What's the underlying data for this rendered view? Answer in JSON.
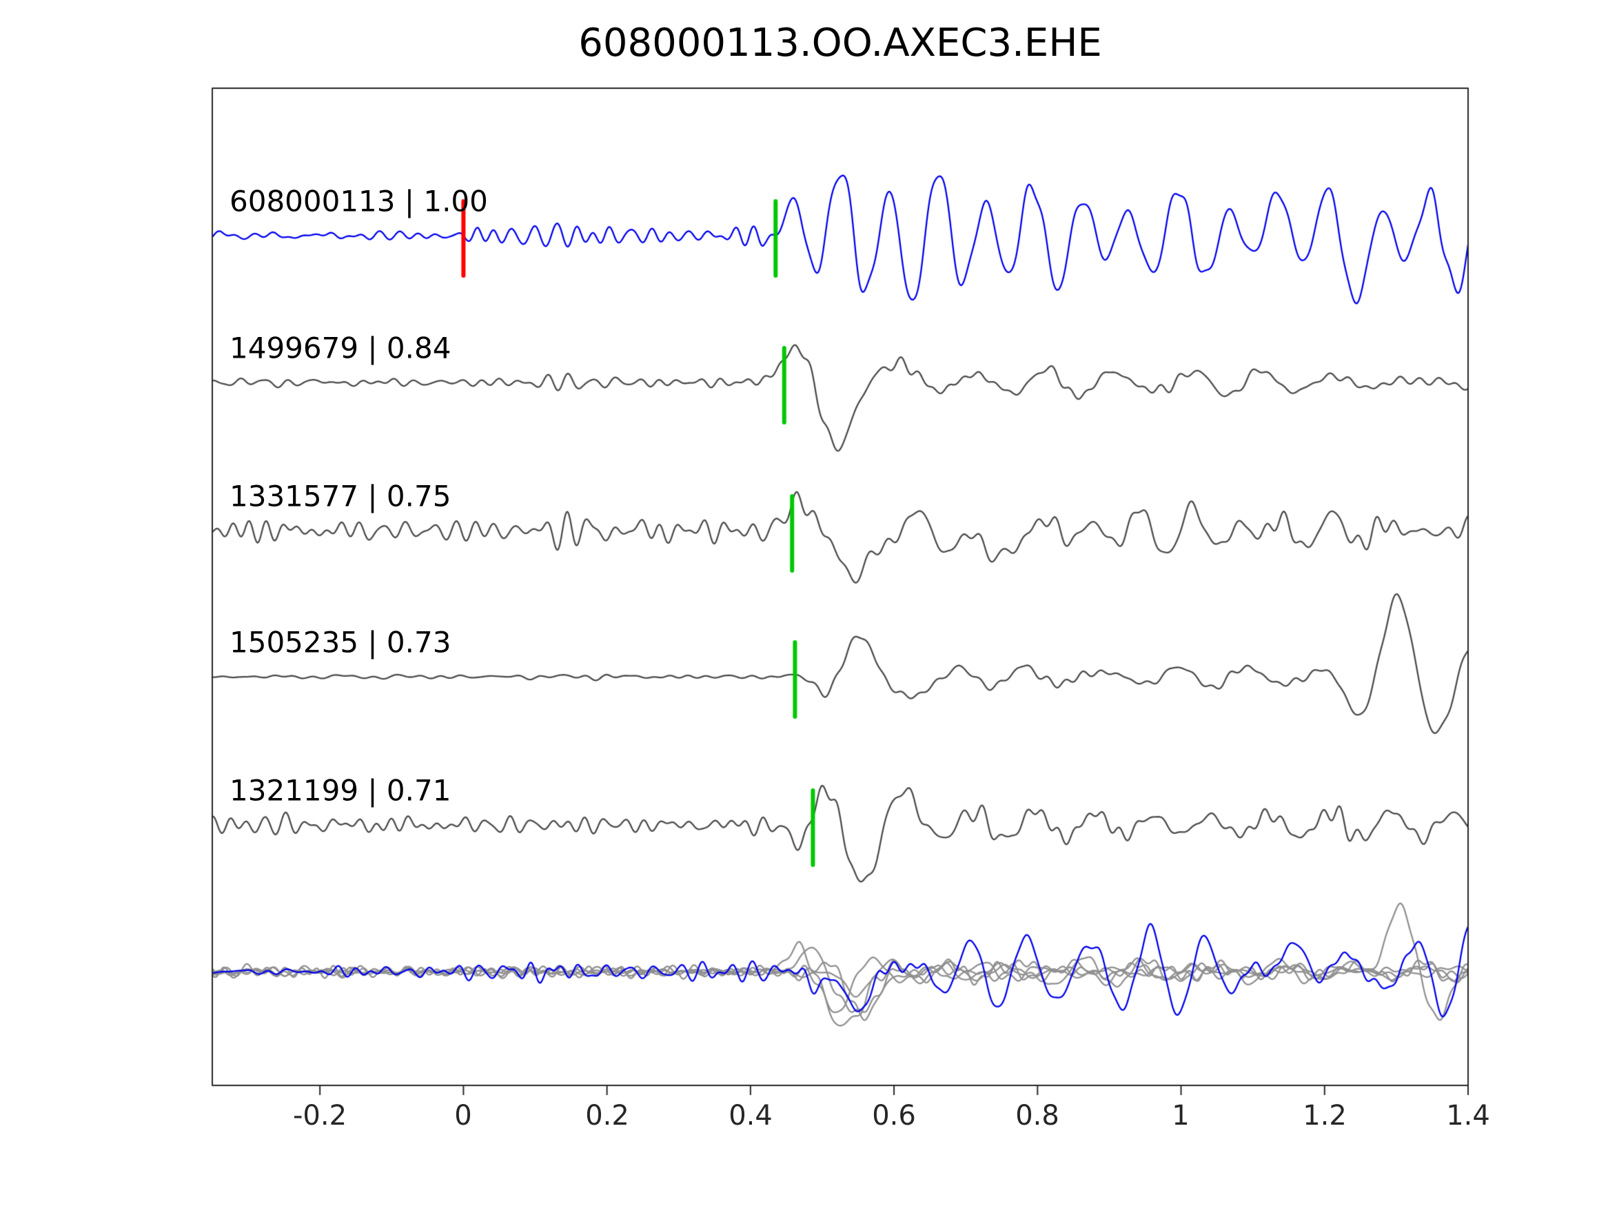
{
  "title": "608000113.OO.AXEC3.EHE",
  "chart_data": {
    "type": "line",
    "title": "608000113.OO.AXEC3.EHE",
    "xlabel": "",
    "ylabel": "",
    "grid": false,
    "legend": false,
    "xlim": [
      -0.35,
      1.4
    ],
    "x_ticks": [
      "-0.2",
      "0",
      "0.2",
      "0.4",
      "0.6",
      "0.8",
      "1",
      "1.2",
      "1.4"
    ],
    "x_tick_values": [
      -0.2,
      0,
      0.2,
      0.4,
      0.6,
      0.8,
      1.0,
      1.2,
      1.4
    ],
    "colors": {
      "template": "#0000ee",
      "match": "#4a4a4a",
      "overlay_gray": "#909090",
      "pick_template": "#ff0000",
      "pick_match": "#00c800",
      "axis": "#262626",
      "text": "#000000"
    },
    "traces": [
      {
        "label": "608000113 | 1.00",
        "event_id": "608000113",
        "similarity": "1.00",
        "color": "template",
        "picks": [
          {
            "x": 0.0,
            "color": "pick_template"
          },
          {
            "x": 0.435,
            "color": "pick_match"
          }
        ],
        "synth": {
          "seed": 11,
          "hf": {
            "fmin": 26,
            "fmax": 50,
            "n": 12,
            "env": [
              [
                -0.35,
                4.5
              ],
              [
                -0.01,
                4.5
              ],
              [
                0.02,
                13
              ],
              [
                0.42,
                13
              ],
              [
                0.52,
                7
              ],
              [
                1.4,
                7
              ]
            ]
          },
          "lf": {
            "fmin": 9,
            "fmax": 17,
            "n": 10,
            "env": [
              [
                -0.35,
                2
              ],
              [
                0.42,
                3
              ],
              [
                0.47,
                50
              ],
              [
                0.6,
                58
              ],
              [
                0.75,
                55
              ],
              [
                0.95,
                48
              ],
              [
                1.1,
                70
              ],
              [
                1.2,
                80
              ],
              [
                1.3,
                65
              ],
              [
                1.4,
                72
              ]
            ]
          },
          "features": [
            {
              "x": 0.52,
              "w": 0.03,
              "amp": 45
            },
            {
              "x": 0.565,
              "w": 0.025,
              "amp": -40
            },
            {
              "x": 1.17,
              "w": 0.03,
              "amp": 45
            },
            {
              "x": 1.225,
              "w": 0.028,
              "amp": -50
            }
          ]
        }
      },
      {
        "label": "1499679 | 0.84",
        "event_id": "1499679",
        "similarity": "0.84",
        "color": "match",
        "picks": [
          {
            "x": 0.447,
            "color": "pick_match"
          }
        ],
        "synth": {
          "seed": 22,
          "hf": {
            "fmin": 28,
            "fmax": 52,
            "n": 12,
            "env": [
              [
                -0.35,
                3.5
              ],
              [
                -0.01,
                3.5
              ],
              [
                0.02,
                8
              ],
              [
                0.43,
                8
              ],
              [
                0.5,
                5
              ],
              [
                1.4,
                4.5
              ]
            ]
          },
          "lf": {
            "fmin": 9,
            "fmax": 15,
            "n": 10,
            "env": [
              [
                -0.35,
                1.5
              ],
              [
                0.43,
                2
              ],
              [
                0.5,
                24
              ],
              [
                0.62,
                26
              ],
              [
                0.8,
                22
              ],
              [
                1.0,
                15
              ],
              [
                1.2,
                12
              ],
              [
                1.4,
                11
              ]
            ]
          },
          "features": [
            {
              "x": 0.462,
              "w": 0.028,
              "amp": 48
            },
            {
              "x": 0.525,
              "w": 0.032,
              "amp": -88
            },
            {
              "x": 0.59,
              "w": 0.028,
              "amp": 34
            }
          ]
        }
      },
      {
        "label": "1331577 | 0.75",
        "event_id": "1331577",
        "similarity": "0.75",
        "color": "match",
        "picks": [
          {
            "x": 0.458,
            "color": "pick_match"
          }
        ],
        "synth": {
          "seed": 33,
          "hf": {
            "fmin": 26,
            "fmax": 48,
            "n": 12,
            "env": [
              [
                -0.35,
                11
              ],
              [
                0.43,
                11
              ],
              [
                0.55,
                8
              ],
              [
                1.4,
                8
              ]
            ]
          },
          "lf": {
            "fmin": 9,
            "fmax": 16,
            "n": 10,
            "env": [
              [
                -0.35,
                3
              ],
              [
                0.44,
                4
              ],
              [
                0.52,
                28
              ],
              [
                0.75,
                28
              ],
              [
                0.95,
                24
              ],
              [
                1.2,
                18
              ],
              [
                1.4,
                13
              ]
            ]
          },
          "features": [
            {
              "x": 0.478,
              "w": 0.026,
              "amp": 55
            },
            {
              "x": 0.537,
              "w": 0.03,
              "amp": -80
            },
            {
              "x": 0.73,
              "w": 0.03,
              "amp": -42
            }
          ]
        }
      },
      {
        "label": "1505235 | 0.73",
        "event_id": "1505235",
        "similarity": "0.73",
        "color": "match",
        "picks": [
          {
            "x": 0.462,
            "color": "pick_match"
          }
        ],
        "synth": {
          "seed": 44,
          "hf": {
            "fmin": 24,
            "fmax": 44,
            "n": 12,
            "env": [
              [
                -0.35,
                2.2
              ],
              [
                0.4,
                2.2
              ],
              [
                0.5,
                3.5
              ],
              [
                1.4,
                3.5
              ]
            ]
          },
          "lf": {
            "fmin": 8,
            "fmax": 14,
            "n": 10,
            "env": [
              [
                -0.35,
                1
              ],
              [
                0.44,
                1.5
              ],
              [
                0.52,
                16
              ],
              [
                0.7,
                14
              ],
              [
                0.95,
                10
              ],
              [
                1.15,
                10
              ],
              [
                1.4,
                12
              ]
            ]
          },
          "features": [
            {
              "x": 0.505,
              "w": 0.02,
              "amp": -20
            },
            {
              "x": 0.553,
              "w": 0.026,
              "amp": 58
            },
            {
              "x": 0.615,
              "w": 0.03,
              "amp": -30
            },
            {
              "x": 1.245,
              "w": 0.026,
              "amp": -42
            },
            {
              "x": 1.302,
              "w": 0.026,
              "amp": 100
            },
            {
              "x": 1.358,
              "w": 0.026,
              "amp": -72
            },
            {
              "x": 1.408,
              "w": 0.022,
              "amp": 40
            }
          ]
        }
      },
      {
        "label": "1321199 | 0.71",
        "event_id": "1321199",
        "similarity": "0.71",
        "color": "match",
        "picks": [
          {
            "x": 0.487,
            "color": "pick_match"
          }
        ],
        "synth": {
          "seed": 55,
          "hf": {
            "fmin": 28,
            "fmax": 52,
            "n": 12,
            "env": [
              [
                -0.35,
                11
              ],
              [
                0.45,
                11
              ],
              [
                0.6,
                9
              ],
              [
                1.4,
                7
              ]
            ]
          },
          "lf": {
            "fmin": 9,
            "fmax": 16,
            "n": 10,
            "env": [
              [
                -0.35,
                2.5
              ],
              [
                0.46,
                4
              ],
              [
                0.54,
                24
              ],
              [
                0.75,
                22
              ],
              [
                1.0,
                15
              ],
              [
                1.4,
                9
              ]
            ]
          },
          "features": [
            {
              "x": 0.468,
              "w": 0.02,
              "amp": -32
            },
            {
              "x": 0.503,
              "w": 0.022,
              "amp": 66
            },
            {
              "x": 0.55,
              "w": 0.028,
              "amp": -84
            },
            {
              "x": 0.605,
              "w": 0.026,
              "amp": 38
            }
          ]
        }
      }
    ],
    "overlay": {
      "traces": [
        {
          "color": "overlay_gray",
          "synth": {
            "seed": 101,
            "hf": {
              "fmin": 26,
              "fmax": 48,
              "n": 10,
              "env": [
                [
                  -0.35,
                  6
                ],
                [
                  0.45,
                  7
                ],
                [
                  1.4,
                  5
                ]
              ]
            },
            "lf": {
              "fmin": 9,
              "fmax": 15,
              "n": 8,
              "env": [
                [
                  -0.35,
                  2
                ],
                [
                  0.45,
                  3
                ],
                [
                  0.53,
                  28
                ],
                [
                  0.7,
                  22
                ],
                [
                  1.0,
                  13
                ],
                [
                  1.4,
                  10
                ]
              ]
            },
            "features": [
              {
                "x": 0.47,
                "w": 0.025,
                "amp": 38
              },
              {
                "x": 0.528,
                "w": 0.028,
                "amp": -95
              }
            ]
          }
        },
        {
          "color": "overlay_gray",
          "synth": {
            "seed": 102,
            "hf": {
              "fmin": 26,
              "fmax": 48,
              "n": 10,
              "env": [
                [
                  -0.35,
                  5
                ],
                [
                  0.45,
                  6
                ],
                [
                  1.4,
                  5
                ]
              ]
            },
            "lf": {
              "fmin": 9,
              "fmax": 15,
              "n": 8,
              "env": [
                [
                  -0.35,
                  2
                ],
                [
                  0.45,
                  2
                ],
                [
                  0.54,
                  24
                ],
                [
                  0.8,
                  18
                ],
                [
                  1.4,
                  10
                ]
              ]
            },
            "features": [
              {
                "x": 0.49,
                "w": 0.024,
                "amp": 30
              },
              {
                "x": 0.55,
                "w": 0.03,
                "amp": -68
              }
            ]
          }
        },
        {
          "color": "overlay_gray",
          "synth": {
            "seed": 103,
            "hf": {
              "fmin": 26,
              "fmax": 48,
              "n": 10,
              "env": [
                [
                  -0.35,
                  5
                ],
                [
                  1.4,
                  5
                ]
              ]
            },
            "lf": {
              "fmin": 9,
              "fmax": 15,
              "n": 8,
              "env": [
                [
                  -0.35,
                  2
                ],
                [
                  0.45,
                  2
                ],
                [
                  0.52,
                  18
                ],
                [
                  0.8,
                  16
                ],
                [
                  1.4,
                  12
                ]
              ]
            },
            "features": [
              {
                "x": 0.512,
                "w": 0.026,
                "amp": -45
              }
            ]
          }
        },
        {
          "color": "overlay_gray",
          "synth": {
            "seed": 104,
            "hf": {
              "fmin": 24,
              "fmax": 44,
              "n": 10,
              "env": [
                [
                  -0.35,
                  3.5
                ],
                [
                  1.4,
                  3
                ]
              ]
            },
            "lf": {
              "fmin": 9,
              "fmax": 15,
              "n": 8,
              "env": [
                [
                  -0.35,
                  1.5
                ],
                [
                  0.45,
                  1.5
                ],
                [
                  0.55,
                  9
                ],
                [
                  1.4,
                  6
                ]
              ]
            },
            "features": [
              {
                "x": 0.535,
                "w": 0.03,
                "amp": -22
              }
            ]
          }
        },
        {
          "color": "overlay_gray",
          "synth": {
            "seed": 105,
            "hf": {
              "fmin": 26,
              "fmax": 48,
              "n": 10,
              "env": [
                [
                  -0.35,
                  5
                ],
                [
                  1.4,
                  4.5
                ]
              ]
            },
            "lf": {
              "fmin": 9,
              "fmax": 15,
              "n": 8,
              "env": [
                [
                  -0.35,
                  2
                ],
                [
                  0.45,
                  2
                ],
                [
                  0.56,
                  20
                ],
                [
                  0.9,
                  14
                ],
                [
                  1.25,
                  12
                ],
                [
                  1.4,
                  10
                ]
              ]
            },
            "features": [
              {
                "x": 0.565,
                "w": 0.03,
                "amp": -55
              },
              {
                "x": 1.302,
                "w": 0.026,
                "amp": 88
              },
              {
                "x": 1.358,
                "w": 0.026,
                "amp": -55
              }
            ]
          }
        },
        {
          "color": "template",
          "synth": {
            "seed": 106,
            "hf": {
              "fmin": 26,
              "fmax": 50,
              "n": 10,
              "env": [
                [
                  -0.35,
                  5
                ],
                [
                  -0.01,
                  5
                ],
                [
                  0.02,
                  11
                ],
                [
                  0.43,
                  11
                ],
                [
                  0.52,
                  6
                ],
                [
                  1.4,
                  6
                ]
              ]
            },
            "lf": {
              "fmin": 9,
              "fmax": 16,
              "n": 8,
              "env": [
                [
                  -0.35,
                  2
                ],
                [
                  0.44,
                  3
                ],
                [
                  0.52,
                  42
                ],
                [
                  0.75,
                  40
                ],
                [
                  1.0,
                  44
                ],
                [
                  1.2,
                  50
                ],
                [
                  1.3,
                  42
                ],
                [
                  1.4,
                  46
                ]
              ]
            },
            "features": [
              {
                "x": 0.535,
                "w": 0.03,
                "amp": -50
              },
              {
                "x": 1.17,
                "w": 0.03,
                "amp": 30
              }
            ]
          }
        }
      ]
    }
  }
}
